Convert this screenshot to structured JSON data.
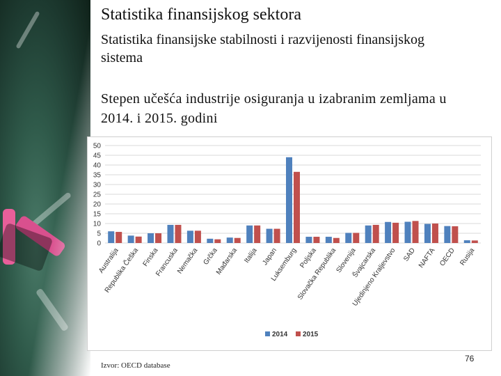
{
  "slide": {
    "title": "Statistika finansijskog sektora",
    "subtitle": "Statistika finansijske stabilnosti i razvijenosti finansijskog sistema",
    "heading": "Stepen učešća industrije osiguranja u izabranim zemljama u 2014. i 2015. godini",
    "source": "Izvor: OECD database",
    "page_number": "76"
  },
  "colors": {
    "series_2014": "#4f81bd",
    "series_2015": "#c0504d",
    "grid": "#d9d9d9"
  },
  "chart_data": {
    "type": "bar",
    "title": "",
    "xlabel": "",
    "ylabel": "",
    "ylim": [
      0,
      50
    ],
    "yticks": [
      0,
      5,
      10,
      15,
      20,
      25,
      30,
      35,
      40,
      45,
      50
    ],
    "grid": true,
    "legend_position": "bottom",
    "categories": [
      "Australija",
      "Republika Češka",
      "Finska",
      "Francuska",
      "Nemačka",
      "Grčka",
      "Mađarska",
      "Italija",
      "Japan",
      "Luksemburg",
      "Poljska",
      "Slovačka Republika",
      "Slovenija",
      "Švajcarska",
      "Ujedinjeno Kraljevstvo",
      "SAD",
      "NAFTA",
      "OECD",
      "Rusija"
    ],
    "series": [
      {
        "name": "2014",
        "values": [
          6.0,
          3.8,
          5.0,
          9.3,
          6.3,
          2.2,
          2.8,
          9.0,
          7.3,
          44.0,
          3.2,
          3.2,
          5.2,
          9.0,
          10.8,
          10.9,
          9.8,
          8.7,
          1.4
        ]
      },
      {
        "name": "2015",
        "values": [
          5.7,
          3.3,
          5.0,
          9.3,
          6.3,
          1.9,
          2.6,
          9.0,
          7.3,
          36.5,
          3.2,
          2.6,
          5.2,
          9.3,
          10.4,
          11.3,
          10.0,
          8.6,
          1.3
        ]
      }
    ]
  }
}
